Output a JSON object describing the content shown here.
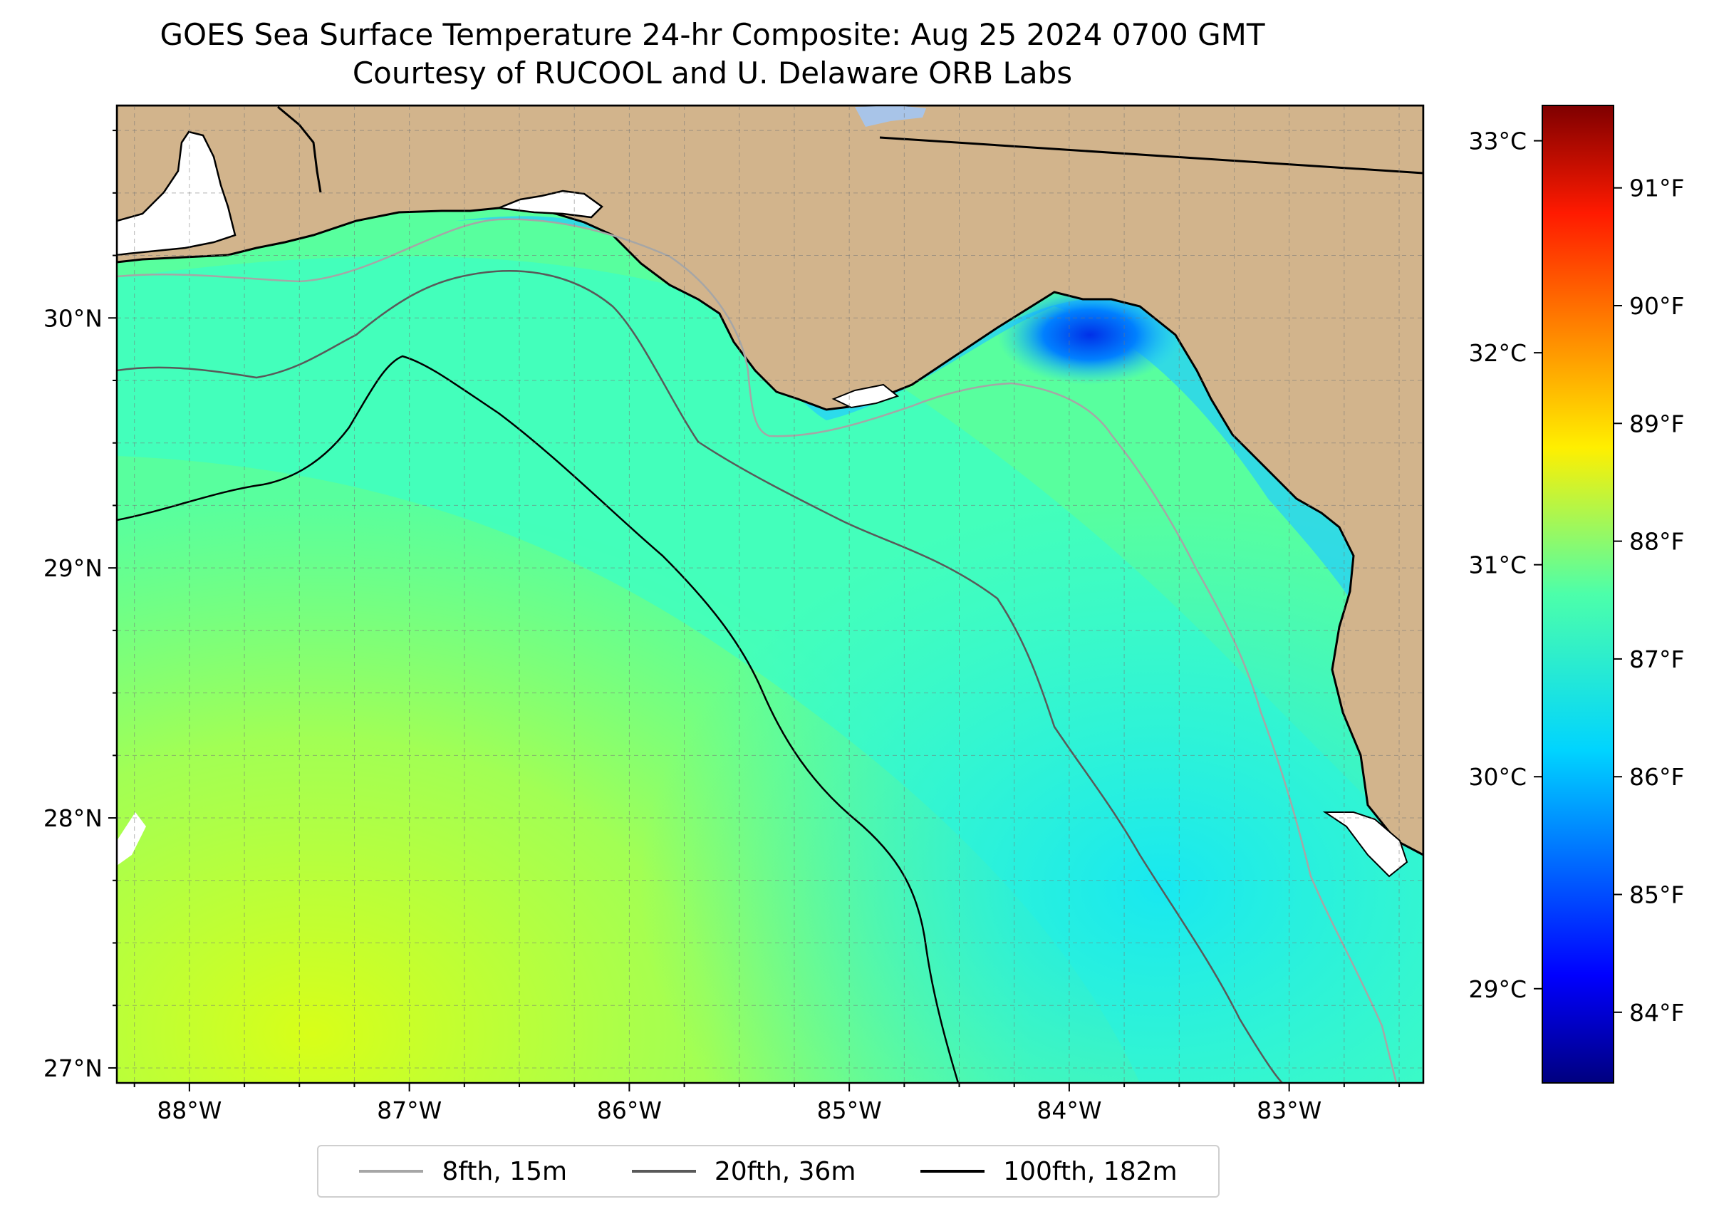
{
  "header": {
    "title": "GOES Sea Surface Temperature 24-hr Composite: Aug 25 2024 0700 GMT",
    "subtitle": "Courtesy of RUCOOL and U. Delaware ORB Labs"
  },
  "map": {
    "lon_range": [
      -88.33,
      -82.39
    ],
    "lat_range": [
      26.94,
      30.85
    ],
    "lon_ticks": [
      {
        "value": -88,
        "label": "88°W"
      },
      {
        "value": -87,
        "label": "87°W"
      },
      {
        "value": -86,
        "label": "86°W"
      },
      {
        "value": -85,
        "label": "85°W"
      },
      {
        "value": -84,
        "label": "84°W"
      },
      {
        "value": -83,
        "label": "83°W"
      }
    ],
    "lat_ticks": [
      {
        "value": 27,
        "label": "27°N"
      },
      {
        "value": 28,
        "label": "28°N"
      },
      {
        "value": 29,
        "label": "29°N"
      },
      {
        "value": 30,
        "label": "30°N"
      }
    ],
    "gridlines": "on (dashed, every 0.25°)",
    "colors": {
      "land": "#d2b48c",
      "water_typical": "#3dffb8",
      "water_cool_nearshore": "#0080ff",
      "water_warm_south": "#c8ff30",
      "no_data": "#ffffff",
      "inland_water": "#a8c4e8"
    }
  },
  "colorbar": {
    "colormap": "jet",
    "celsius_ticks": [
      {
        "value": 29,
        "label": "29°C"
      },
      {
        "value": 30,
        "label": "30°C"
      },
      {
        "value": 31,
        "label": "31°C"
      },
      {
        "value": 32,
        "label": "32°C"
      },
      {
        "value": 33,
        "label": "33°C"
      }
    ],
    "fahrenheit_ticks": [
      {
        "value": 84,
        "label": "84°F"
      },
      {
        "value": 85,
        "label": "85°F"
      },
      {
        "value": 86,
        "label": "86°F"
      },
      {
        "value": 87,
        "label": "87°F"
      },
      {
        "value": 88,
        "label": "88°F"
      },
      {
        "value": 89,
        "label": "89°F"
      },
      {
        "value": 90,
        "label": "90°F"
      },
      {
        "value": 91,
        "label": "91°F"
      }
    ],
    "range_f": [
      83.4,
      91.7
    ]
  },
  "legend": {
    "items": [
      {
        "label": "8fth, 15m",
        "color": "#a6a6a6"
      },
      {
        "label": "20fth, 36m",
        "color": "#595959"
      },
      {
        "label": "100fth, 182m",
        "color": "#000000"
      }
    ]
  }
}
